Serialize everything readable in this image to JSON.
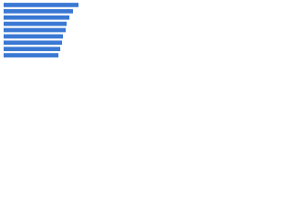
{
  "chart_data": {
    "type": "hbar",
    "categories": [
      null,
      null,
      null,
      null,
      null,
      null,
      null,
      null,
      null
    ],
    "values": [
      82,
      76,
      72,
      69,
      68,
      65,
      64,
      62,
      60
    ],
    "color": "#3a78d4"
  }
}
